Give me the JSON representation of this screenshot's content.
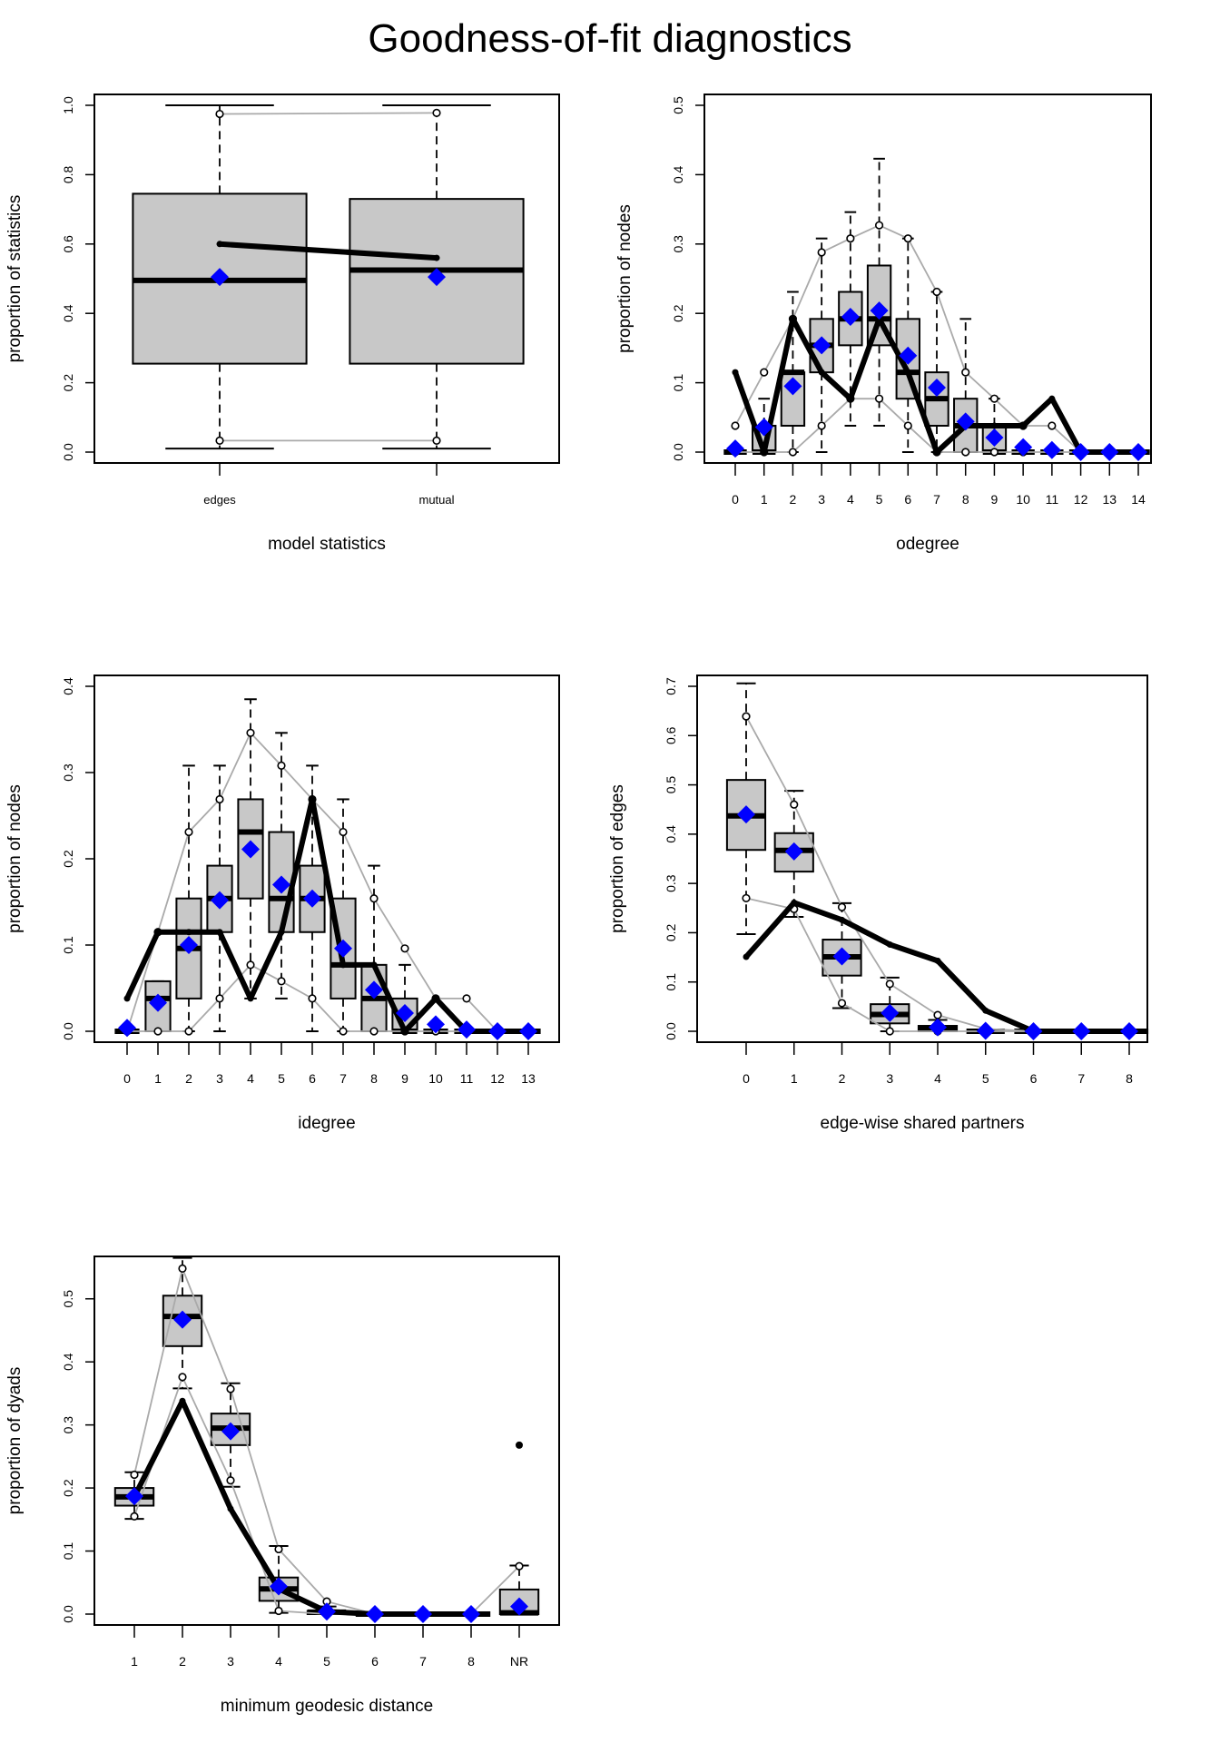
{
  "title": "Goodness-of-fit diagnostics",
  "colors": {
    "box_fill": "#c8c8c8",
    "observed": "#000000",
    "sim_range": "#aaaaaa",
    "mean_marker": "#0000ff"
  },
  "chart_data": [
    {
      "id": "model-stats",
      "type": "boxplot",
      "title": "",
      "xlabel": "model statistics",
      "ylabel": "proportion of statistics",
      "categories": [
        "edges",
        "mutual"
      ],
      "ylim": [
        0,
        1.0
      ],
      "yticks": [
        0.0,
        0.2,
        0.4,
        0.6,
        0.8,
        1.0
      ],
      "ytick_labels": [
        "0.0",
        "0.2",
        "0.4",
        "0.6",
        "0.8",
        "1.0"
      ],
      "wide_boxes": true,
      "boxes": [
        {
          "whisker_low": 0.01,
          "q1": 0.255,
          "median": 0.495,
          "q3": 0.745,
          "whisker_high": 1.0
        },
        {
          "whisker_low": 0.01,
          "q1": 0.255,
          "median": 0.525,
          "q3": 0.73,
          "whisker_high": 1.0
        }
      ],
      "observed": [
        0.6,
        0.56
      ],
      "sim_upper": [
        0.975,
        0.978
      ],
      "sim_lower": [
        0.033,
        0.033
      ],
      "sim_mean": [
        0.505,
        0.505
      ],
      "outliers": []
    },
    {
      "id": "odegree",
      "type": "boxplot",
      "title": "",
      "xlabel": "odegree",
      "ylabel": "proportion of nodes",
      "categories": [
        "0",
        "1",
        "2",
        "3",
        "4",
        "5",
        "6",
        "7",
        "8",
        "9",
        "10",
        "11",
        "12",
        "13",
        "14"
      ],
      "ylim": [
        0,
        0.5
      ],
      "yticks": [
        0.0,
        0.1,
        0.2,
        0.3,
        0.4,
        0.5
      ],
      "ytick_labels": [
        "0.0",
        "0.1",
        "0.2",
        "0.3",
        "0.4",
        "0.5"
      ],
      "boxes": [
        {
          "whisker_low": 0,
          "q1": 0,
          "median": 0,
          "q3": 0,
          "whisker_high": 0
        },
        {
          "whisker_low": 0,
          "q1": 0,
          "median": 0.0,
          "q3": 0.038,
          "whisker_high": 0.077
        },
        {
          "whisker_low": 0,
          "q1": 0.038,
          "median": 0.115,
          "q3": 0.115,
          "whisker_high": 0.231
        },
        {
          "whisker_low": 0,
          "q1": 0.115,
          "median": 0.154,
          "q3": 0.192,
          "whisker_high": 0.308
        },
        {
          "whisker_low": 0.038,
          "q1": 0.154,
          "median": 0.192,
          "q3": 0.231,
          "whisker_high": 0.346
        },
        {
          "whisker_low": 0.038,
          "q1": 0.154,
          "median": 0.192,
          "q3": 0.269,
          "whisker_high": 0.423
        },
        {
          "whisker_low": 0,
          "q1": 0.077,
          "median": 0.115,
          "q3": 0.192,
          "whisker_high": 0.308
        },
        {
          "whisker_low": 0,
          "q1": 0.038,
          "median": 0.077,
          "q3": 0.115,
          "whisker_high": 0.231
        },
        {
          "whisker_low": 0,
          "q1": 0,
          "median": 0.038,
          "q3": 0.077,
          "whisker_high": 0.192
        },
        {
          "whisker_low": 0,
          "q1": 0,
          "median": 0.0,
          "q3": 0.038,
          "whisker_high": 0.077
        },
        {
          "whisker_low": 0,
          "q1": 0,
          "median": 0,
          "q3": 0,
          "whisker_high": 0
        },
        {
          "whisker_low": 0,
          "q1": 0,
          "median": 0,
          "q3": 0,
          "whisker_high": 0
        },
        {
          "whisker_low": 0,
          "q1": 0,
          "median": 0,
          "q3": 0,
          "whisker_high": 0
        },
        {
          "whisker_low": 0,
          "q1": 0,
          "median": 0,
          "q3": 0,
          "whisker_high": 0
        },
        {
          "whisker_low": 0,
          "q1": 0,
          "median": 0,
          "q3": 0,
          "whisker_high": 0
        }
      ],
      "observed": [
        0.115,
        0.0,
        0.192,
        0.115,
        0.077,
        0.192,
        0.115,
        0.0,
        0.038,
        0.038,
        0.038,
        0.077,
        0.0,
        0.0,
        0.0
      ],
      "sim_upper": [
        0.038,
        0.115,
        0.192,
        0.288,
        0.308,
        0.327,
        0.308,
        0.231,
        0.115,
        0.077,
        0.038,
        0.038,
        0.0,
        0.0,
        0.0
      ],
      "sim_lower": [
        0.0,
        0.0,
        0.0,
        0.038,
        0.077,
        0.077,
        0.038,
        0.0,
        0.0,
        0.0,
        0.0,
        0.0,
        0.0,
        0.0,
        0.0
      ],
      "sim_mean": [
        0.005,
        0.036,
        0.095,
        0.154,
        0.195,
        0.204,
        0.139,
        0.093,
        0.044,
        0.021,
        0.007,
        0.003,
        0.0,
        0.0,
        0.0
      ],
      "outliers": []
    },
    {
      "id": "idegree",
      "type": "boxplot",
      "title": "",
      "xlabel": "idegree",
      "ylabel": "proportion of nodes",
      "categories": [
        "0",
        "1",
        "2",
        "3",
        "4",
        "5",
        "6",
        "7",
        "8",
        "9",
        "10",
        "11",
        "12",
        "13"
      ],
      "ylim": [
        0,
        0.4
      ],
      "yticks": [
        0.0,
        0.1,
        0.2,
        0.3,
        0.4
      ],
      "ytick_labels": [
        "0.0",
        "0.1",
        "0.2",
        "0.3",
        "0.4"
      ],
      "boxes": [
        {
          "whisker_low": 0,
          "q1": 0,
          "median": 0,
          "q3": 0,
          "whisker_high": 0
        },
        {
          "whisker_low": 0,
          "q1": 0,
          "median": 0.038,
          "q3": 0.058,
          "whisker_high": 0.058
        },
        {
          "whisker_low": 0,
          "q1": 0.038,
          "median": 0.096,
          "q3": 0.154,
          "whisker_high": 0.308
        },
        {
          "whisker_low": 0,
          "q1": 0.115,
          "median": 0.154,
          "q3": 0.192,
          "whisker_high": 0.308
        },
        {
          "whisker_low": 0.038,
          "q1": 0.154,
          "median": 0.231,
          "q3": 0.269,
          "whisker_high": 0.385
        },
        {
          "whisker_low": 0.038,
          "q1": 0.115,
          "median": 0.154,
          "q3": 0.231,
          "whisker_high": 0.346
        },
        {
          "whisker_low": 0,
          "q1": 0.115,
          "median": 0.154,
          "q3": 0.192,
          "whisker_high": 0.308
        },
        {
          "whisker_low": 0,
          "q1": 0.038,
          "median": 0.077,
          "q3": 0.154,
          "whisker_high": 0.269
        },
        {
          "whisker_low": 0,
          "q1": 0,
          "median": 0.038,
          "q3": 0.077,
          "whisker_high": 0.192
        },
        {
          "whisker_low": 0,
          "q1": 0,
          "median": 0.0,
          "q3": 0.038,
          "whisker_high": 0.077
        },
        {
          "whisker_low": 0,
          "q1": 0,
          "median": 0,
          "q3": 0,
          "whisker_high": 0
        },
        {
          "whisker_low": 0,
          "q1": 0,
          "median": 0,
          "q3": 0,
          "whisker_high": 0
        },
        {
          "whisker_low": 0,
          "q1": 0,
          "median": 0,
          "q3": 0,
          "whisker_high": 0
        },
        {
          "whisker_low": 0,
          "q1": 0,
          "median": 0,
          "q3": 0,
          "whisker_high": 0
        }
      ],
      "observed": [
        0.038,
        0.115,
        0.115,
        0.115,
        0.038,
        0.115,
        0.269,
        0.077,
        0.077,
        0.0,
        0.038,
        0.0,
        0.0,
        0.0
      ],
      "sim_upper": [
        0.0,
        0.115,
        0.231,
        0.269,
        0.346,
        0.308,
        0.269,
        0.231,
        0.154,
        0.096,
        0.038,
        0.038,
        0.0,
        0.0
      ],
      "sim_lower": [
        0.0,
        0.0,
        0.0,
        0.038,
        0.077,
        0.058,
        0.038,
        0.0,
        0.0,
        0.0,
        0.0,
        0.0,
        0.0,
        0.0
      ],
      "sim_mean": [
        0.004,
        0.033,
        0.1,
        0.152,
        0.211,
        0.17,
        0.154,
        0.096,
        0.048,
        0.021,
        0.008,
        0.002,
        0.0,
        0.0
      ],
      "outliers": []
    },
    {
      "id": "esp",
      "type": "boxplot",
      "title": "",
      "xlabel": "edge-wise shared partners",
      "ylabel": "proportion of edges",
      "categories": [
        "0",
        "1",
        "2",
        "3",
        "4",
        "5",
        "6",
        "7",
        "8"
      ],
      "ylim": [
        0,
        0.7
      ],
      "yticks": [
        0.0,
        0.1,
        0.2,
        0.3,
        0.4,
        0.5,
        0.6,
        0.7
      ],
      "ytick_labels": [
        "0.0",
        "0.1",
        "0.2",
        "0.3",
        "0.4",
        "0.5",
        "0.6",
        "0.7"
      ],
      "boxes": [
        {
          "whisker_low": 0.197,
          "q1": 0.368,
          "median": 0.437,
          "q3": 0.51,
          "whisker_high": 0.706
        },
        {
          "whisker_low": 0.232,
          "q1": 0.324,
          "median": 0.367,
          "q3": 0.402,
          "whisker_high": 0.488
        },
        {
          "whisker_low": 0.047,
          "q1": 0.113,
          "median": 0.151,
          "q3": 0.186,
          "whisker_high": 0.26
        },
        {
          "whisker_low": 0.0,
          "q1": 0.016,
          "median": 0.034,
          "q3": 0.055,
          "whisker_high": 0.109
        },
        {
          "whisker_low": 0.0,
          "q1": 0.0,
          "median": 0.006,
          "q3": 0.011,
          "whisker_high": 0.023
        },
        {
          "whisker_low": 0,
          "q1": 0,
          "median": 0,
          "q3": 0,
          "whisker_high": 0
        },
        {
          "whisker_low": 0,
          "q1": 0,
          "median": 0,
          "q3": 0,
          "whisker_high": 0
        },
        {
          "whisker_low": 0,
          "q1": 0,
          "median": 0,
          "q3": 0,
          "whisker_high": 0
        },
        {
          "whisker_low": 0,
          "q1": 0,
          "median": 0,
          "q3": 0,
          "whisker_high": 0
        }
      ],
      "observed": [
        0.151,
        0.261,
        0.226,
        0.176,
        0.143,
        0.042,
        0.0,
        0.0,
        0.0
      ],
      "sim_upper": [
        0.639,
        0.46,
        0.252,
        0.096,
        0.033,
        0.005,
        0.0,
        0.0,
        0.0
      ],
      "sim_lower": [
        0.27,
        0.248,
        0.057,
        0.0,
        0.0,
        0.0,
        0.0,
        0.0,
        0.0
      ],
      "sim_mean": [
        0.44,
        0.365,
        0.152,
        0.037,
        0.008,
        0.001,
        0.0,
        0.0,
        0.0
      ],
      "outliers": []
    },
    {
      "id": "distance",
      "type": "boxplot",
      "title": "",
      "xlabel": "minimum geodesic distance",
      "ylabel": "proportion of dyads",
      "categories": [
        "1",
        "2",
        "3",
        "4",
        "5",
        "6",
        "7",
        "8",
        "NR"
      ],
      "ylim": [
        0,
        0.55
      ],
      "yticks": [
        0.0,
        0.1,
        0.2,
        0.3,
        0.4,
        0.5
      ],
      "ytick_labels": [
        "0.0",
        "0.1",
        "0.2",
        "0.3",
        "0.4",
        "0.5"
      ],
      "boxes": [
        {
          "whisker_low": 0.151,
          "q1": 0.172,
          "median": 0.186,
          "q3": 0.2,
          "whisker_high": 0.225
        },
        {
          "whisker_low": 0.358,
          "q1": 0.425,
          "median": 0.472,
          "q3": 0.505,
          "whisker_high": 0.565
        },
        {
          "whisker_low": 0.202,
          "q1": 0.268,
          "median": 0.295,
          "q3": 0.318,
          "whisker_high": 0.366
        },
        {
          "whisker_low": 0.002,
          "q1": 0.021,
          "median": 0.04,
          "q3": 0.058,
          "whisker_high": 0.108
        },
        {
          "whisker_low": 0.0,
          "q1": 0.0,
          "median": 0.003,
          "q3": 0.005,
          "whisker_high": 0.012
        },
        {
          "whisker_low": 0,
          "q1": 0,
          "median": 0,
          "q3": 0,
          "whisker_high": 0
        },
        {
          "whisker_low": 0,
          "q1": 0,
          "median": 0,
          "q3": 0,
          "whisker_high": 0
        },
        {
          "whisker_low": 0,
          "q1": 0,
          "median": 0,
          "q3": 0,
          "whisker_high": 0
        },
        {
          "whisker_low": 0.0,
          "q1": 0.0,
          "median": 0.002,
          "q3": 0.039,
          "whisker_high": 0.077
        }
      ],
      "observed": [
        0.186,
        0.338,
        0.167,
        0.04,
        0.004,
        0.0,
        0.0,
        0.0,
        null
      ],
      "sim_upper": [
        0.221,
        0.548,
        0.357,
        0.103,
        0.02,
        0.0,
        0.0,
        0.0,
        0.076
      ],
      "sim_lower": [
        0.155,
        0.376,
        0.212,
        0.005,
        0.0,
        0.0,
        0.0,
        0.0,
        null
      ],
      "sim_mean": [
        0.187,
        0.467,
        0.29,
        0.044,
        0.004,
        0.0,
        0.0,
        0.0,
        0.012
      ],
      "outliers": [
        {
          "category": "NR",
          "value": 0.268
        }
      ]
    }
  ]
}
